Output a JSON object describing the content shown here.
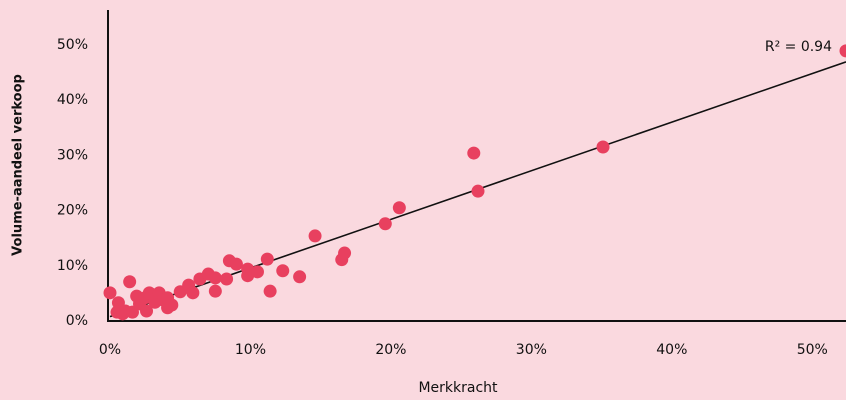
{
  "chart_data": {
    "type": "scatter",
    "x_label": "Merkkracht",
    "y_label": "Volume-aandeel verkoop",
    "annotation": "R² = 0.94",
    "color": "#e8405f",
    "trendline": {
      "slope": 0.88,
      "intercept": 0.8
    },
    "xlim": [
      0,
      52.4
    ],
    "ylim": [
      0,
      56.3
    ],
    "xticks": [
      {
        "value": 0,
        "label": "0%"
      },
      {
        "value": 10,
        "label": "10%"
      },
      {
        "value": 20,
        "label": "20%"
      },
      {
        "value": 30,
        "label": "30%"
      },
      {
        "value": 40,
        "label": "40%"
      },
      {
        "value": 50,
        "label": "50%"
      }
    ],
    "yticks": [
      {
        "value": 0,
        "label": "0%"
      },
      {
        "value": 10,
        "label": "10%"
      },
      {
        "value": 20,
        "label": "20%"
      },
      {
        "value": 30,
        "label": "30%"
      },
      {
        "value": 40,
        "label": "40%"
      },
      {
        "value": 50,
        "label": "50%"
      }
    ],
    "x": [
      0,
      0.6,
      0.5,
      0.9,
      1.1,
      1.4,
      1.6,
      1.9,
      2.1,
      2.5,
      2.6,
      2.8,
      3.2,
      3.5,
      3.8,
      4.1,
      4.4,
      4.1,
      5.0,
      5.6,
      5.9,
      6.4,
      7.0,
      7.5,
      7.5,
      8.3,
      8.5,
      9.0,
      9.8,
      9.8,
      10.5,
      11.2,
      11.4,
      12.3,
      13.5,
      14.6,
      16.5,
      16.7,
      19.6,
      20.6,
      25.9,
      26.2,
      35.1,
      52.4
    ],
    "values": [
      5.1,
      3.3,
      1.6,
      1.3,
      1.8,
      7.1,
      1.6,
      4.5,
      3.1,
      4.2,
      1.8,
      5.1,
      3.4,
      5.1,
      3.8,
      2.4,
      2.9,
      4.2,
      5.3,
      6.5,
      5.1,
      7.6,
      8.5,
      5.4,
      7.8,
      7.6,
      10.9,
      10.3,
      8.2,
      9.4,
      8.9,
      11.2,
      5.4,
      9.1,
      8.0,
      15.4,
      11.1,
      12.3,
      17.6,
      20.5,
      30.4,
      23.5,
      31.5,
      48.9
    ]
  }
}
